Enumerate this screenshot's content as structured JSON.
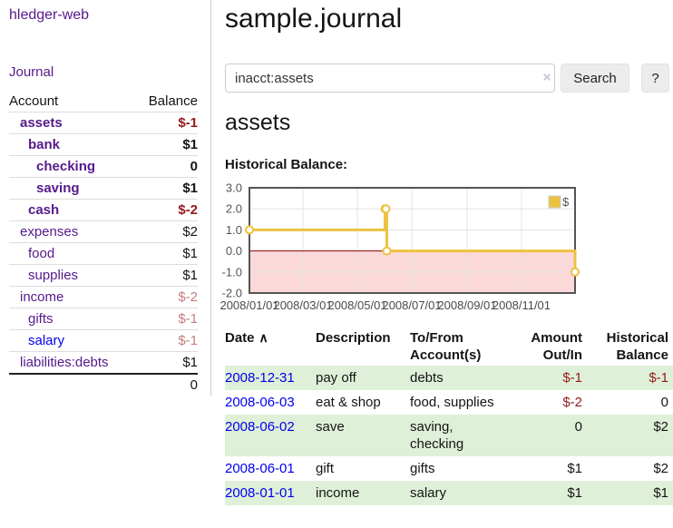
{
  "colors": {
    "link_purple": "#551A8B",
    "link_blue": "#0000EE",
    "negative_strong": "#941A1A",
    "negative_soft": "#C47E7E",
    "row_green": "#dff0d8"
  },
  "sidebar": {
    "brand": "hledger-web",
    "nav": [
      {
        "label": "Journal"
      }
    ],
    "accounts_table": {
      "headers": [
        "Account",
        "Balance"
      ],
      "rows": [
        {
          "account": "assets",
          "balance": "$-1",
          "depth": 1,
          "bold": true
        },
        {
          "account": "bank",
          "balance": "$1",
          "depth": 2,
          "bold": true
        },
        {
          "account": "checking",
          "balance": "0",
          "depth": 3,
          "bold": true
        },
        {
          "account": "saving",
          "balance": "$1",
          "depth": 3,
          "bold": true
        },
        {
          "account": "cash",
          "balance": "$-2",
          "depth": 2,
          "bold": true
        },
        {
          "account": "expenses",
          "balance": "$2",
          "depth": 1,
          "bold": false
        },
        {
          "account": "food",
          "balance": "$1",
          "depth": 2,
          "bold": false
        },
        {
          "account": "supplies",
          "balance": "$1",
          "depth": 2,
          "bold": false
        },
        {
          "account": "income",
          "balance": "$-2",
          "depth": 1,
          "bold": false
        },
        {
          "account": "gifts",
          "balance": "$-1",
          "depth": 2,
          "bold": false
        },
        {
          "account": "salary",
          "balance": "$-1",
          "depth": 2,
          "bold": false
        },
        {
          "account": "liabilities:debts",
          "balance": "$1",
          "depth": 1,
          "bold": false
        }
      ],
      "total": "0"
    }
  },
  "main": {
    "title": "sample.journal",
    "search": {
      "value": "inacct:assets",
      "clear_icon": "×",
      "button": "Search",
      "help_button": "?"
    },
    "account_heading": "assets",
    "chart_heading": "Historical Balance:"
  },
  "chart_data": {
    "type": "line",
    "title": "Historical Balance",
    "step": true,
    "series": [
      {
        "name": "$",
        "color": "#EDC240",
        "points": [
          {
            "date": "2008-01-01",
            "value": 1
          },
          {
            "date": "2008-06-01",
            "value": 2
          },
          {
            "date": "2008-06-02",
            "value": 2
          },
          {
            "date": "2008-06-03",
            "value": 0
          },
          {
            "date": "2008-12-31",
            "value": -1
          }
        ]
      }
    ],
    "x_range": [
      "2008-01-01",
      "2008-12-31"
    ],
    "ylim": [
      -2,
      3
    ],
    "yticks": [
      "3.0",
      "2.0",
      "1.0",
      "0.0",
      "-1.0",
      "-2.0"
    ],
    "xticks": [
      "2008/01/01",
      "2008/03/01",
      "2008/05/01",
      "2008/07/01",
      "2008/09/01",
      "2008/11/01"
    ],
    "legend": {
      "label": "$",
      "position": "top-right"
    },
    "grid": true,
    "negative_region_shaded": true,
    "chart_colors": {
      "line": "#EDC240",
      "negative_fill": "#FBD9D9",
      "zero_line": "#8B0000",
      "border": "#545454",
      "grid": "#E3E3E3",
      "tick_text": "#545454"
    }
  },
  "register_table": {
    "headers": {
      "date": "Date",
      "sort_icon": "∧",
      "description": "Description",
      "tofrom_line1": "To/From",
      "tofrom_line2": "Account(s)",
      "amount_line1": "Amount",
      "amount_line2": "Out/In",
      "balance_line1": "Historical",
      "balance_line2": "Balance"
    },
    "rows": [
      {
        "date": "2008-12-31",
        "description": "pay off",
        "tofrom": "debts",
        "amount": "$-1",
        "balance": "$-1"
      },
      {
        "date": "2008-06-03",
        "description": "eat & shop",
        "tofrom": "food, supplies",
        "amount": "$-2",
        "balance": "0"
      },
      {
        "date": "2008-06-02",
        "description": "save",
        "tofrom": "saving,",
        "tofrom2": "checking",
        "amount": "0",
        "balance": "$2"
      },
      {
        "date": "2008-06-01",
        "description": "gift",
        "tofrom": "gifts",
        "amount": "$1",
        "balance": "$2"
      },
      {
        "date": "2008-01-01",
        "description": "income",
        "tofrom": "salary",
        "amount": "$1",
        "balance": "$1"
      }
    ]
  }
}
